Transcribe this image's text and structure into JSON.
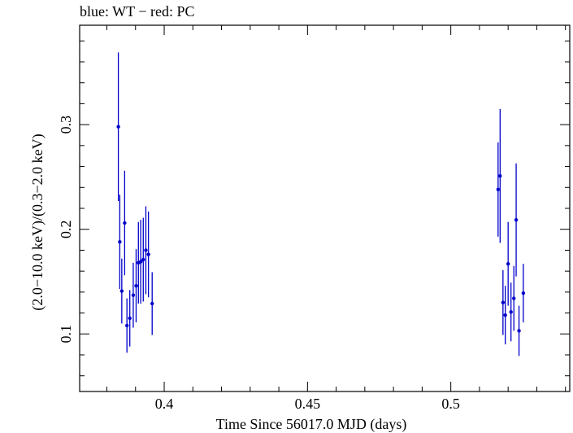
{
  "chart_data": {
    "type": "scatter",
    "title": "blue: WT − red: PC",
    "xlabel": "Time Since 56017.0 MJD (days)",
    "ylabel": "(2.0−10.0 keV)/(0.3−2.0 keV)",
    "xlim": [
      0.3705,
      0.5415
    ],
    "ylim": [
      0.045,
      0.395
    ],
    "xticks": [
      0.4,
      0.45,
      0.5
    ],
    "xtick_labels": [
      "0.4",
      "0.45",
      "0.5"
    ],
    "yticks": [
      0.1,
      0.2,
      0.3
    ],
    "ytick_labels": [
      "0.1",
      "0.2",
      "0.3"
    ],
    "series": [
      {
        "name": "WT",
        "color": "#0000cc",
        "points": [
          {
            "x": 0.384,
            "y": 0.298,
            "err": 0.071
          },
          {
            "x": 0.3845,
            "y": 0.188,
            "err": 0.045
          },
          {
            "x": 0.3852,
            "y": 0.141,
            "err": 0.031
          },
          {
            "x": 0.3862,
            "y": 0.206,
            "err": 0.05
          },
          {
            "x": 0.387,
            "y": 0.108,
            "err": 0.026
          },
          {
            "x": 0.388,
            "y": 0.115,
            "err": 0.027
          },
          {
            "x": 0.3892,
            "y": 0.137,
            "err": 0.031
          },
          {
            "x": 0.3902,
            "y": 0.146,
            "err": 0.035
          },
          {
            "x": 0.391,
            "y": 0.168,
            "err": 0.039
          },
          {
            "x": 0.3918,
            "y": 0.169,
            "err": 0.04
          },
          {
            "x": 0.3927,
            "y": 0.171,
            "err": 0.04
          },
          {
            "x": 0.3936,
            "y": 0.18,
            "err": 0.042
          },
          {
            "x": 0.3945,
            "y": 0.176,
            "err": 0.041
          },
          {
            "x": 0.3958,
            "y": 0.129,
            "err": 0.03
          },
          {
            "x": 0.5165,
            "y": 0.238,
            "err": 0.045
          },
          {
            "x": 0.5172,
            "y": 0.251,
            "err": 0.064
          },
          {
            "x": 0.5182,
            "y": 0.13,
            "err": 0.031
          },
          {
            "x": 0.519,
            "y": 0.118,
            "err": 0.028
          },
          {
            "x": 0.52,
            "y": 0.167,
            "err": 0.04
          },
          {
            "x": 0.521,
            "y": 0.121,
            "err": 0.028
          },
          {
            "x": 0.522,
            "y": 0.134,
            "err": 0.031
          },
          {
            "x": 0.5228,
            "y": 0.209,
            "err": 0.054
          },
          {
            "x": 0.5238,
            "y": 0.103,
            "err": 0.024
          },
          {
            "x": 0.5253,
            "y": 0.139,
            "err": 0.028
          }
        ]
      }
    ]
  }
}
